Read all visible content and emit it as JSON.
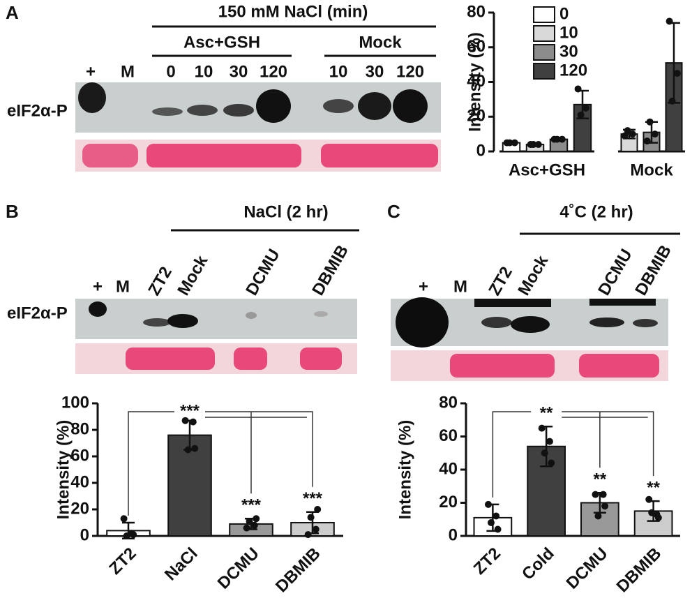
{
  "panels": {
    "A": {
      "label": "A",
      "treatment": "150 mM NaCl (min)",
      "groups": [
        "Asc+GSH",
        "Mock"
      ],
      "lanes": [
        "+",
        "M",
        "0",
        "10",
        "30",
        "120",
        "10",
        "30",
        "120"
      ],
      "blot_label": "eIF2α-P"
    },
    "B": {
      "label": "B",
      "treatment": "NaCl (2 hr)",
      "lanes": [
        "+",
        "M",
        "ZT2",
        "Mock",
        "DCMU",
        "DBMIB"
      ],
      "blot_label": "eIF2α-P"
    },
    "C": {
      "label": "C",
      "treatment": "4˚C (2 hr)",
      "lanes": [
        "+",
        "M",
        "ZT2",
        "Mock",
        "DCMU",
        "DBMIB"
      ]
    }
  },
  "chart_data": [
    {
      "type": "grouped_bar",
      "y_label": "Intensity (%)",
      "categories": [
        "Asc+GSH",
        "Mock"
      ],
      "series": [
        {
          "name": "0",
          "color": "#ffffff",
          "values": [
            5,
            null
          ],
          "errors": [
            0.5,
            null
          ],
          "points": [
            [
              5,
              5,
              5
            ],
            null
          ]
        },
        {
          "name": "10",
          "color": "#d9d9d9",
          "values": [
            4,
            10
          ],
          "errors": [
            0.5,
            2.5
          ],
          "points": [
            [
              4,
              4,
              4
            ],
            [
              9,
              10,
              12
            ]
          ]
        },
        {
          "name": "30",
          "color": "#8c8c8c",
          "values": [
            7,
            11
          ],
          "errors": [
            0.5,
            6
          ],
          "points": [
            [
              7,
              7,
              7
            ],
            [
              6,
              10,
              17
            ]
          ]
        },
        {
          "name": "120",
          "color": "#404040",
          "values": [
            27,
            51
          ],
          "errors": [
            8,
            23
          ],
          "points": [
            [
              36,
              25,
              21
            ],
            [
              75,
              45,
              29
            ]
          ]
        }
      ],
      "ylim": [
        0,
        80
      ],
      "yticks": [
        0,
        20,
        40,
        60,
        80
      ],
      "legend": "top-left"
    },
    {
      "type": "bar",
      "y_label": "Intensity (%)",
      "categories": [
        "ZT2",
        "NaCl",
        "DCMU",
        "DBMIB"
      ],
      "values": [
        4,
        76,
        9,
        10
      ],
      "errors": [
        6,
        11,
        4,
        8
      ],
      "colors": [
        "#ffffff",
        "#404040",
        "#999999",
        "#cccccc"
      ],
      "points": [
        [
          13,
          2,
          0,
          1
        ],
        [
          87,
          86,
          65,
          66
        ],
        [
          6,
          8,
          11,
          13
        ],
        [
          1,
          5,
          14,
          20
        ]
      ],
      "sig_labels": [
        null,
        "***",
        "***",
        "***"
      ],
      "ylim": [
        0,
        100
      ],
      "yticks": [
        0,
        20,
        40,
        60,
        80,
        100
      ]
    },
    {
      "type": "bar",
      "y_label": "Intensity (%)",
      "categories": [
        "ZT2",
        "Cold",
        "DCMU",
        "DBMIB"
      ],
      "values": [
        11,
        54,
        20,
        15
      ],
      "errors": [
        8,
        12,
        6,
        6
      ],
      "colors": [
        "#ffffff",
        "#404040",
        "#999999",
        "#cccccc"
      ],
      "points": [
        [
          19,
          12,
          8,
          4
        ],
        [
          65,
          57,
          50,
          44
        ],
        [
          25,
          25,
          12,
          18
        ],
        [
          22,
          13,
          14,
          11
        ]
      ],
      "sig_labels": [
        null,
        "**",
        "**",
        "**"
      ],
      "ylim": [
        0,
        80
      ],
      "yticks": [
        0,
        20,
        40,
        60,
        80
      ]
    }
  ]
}
